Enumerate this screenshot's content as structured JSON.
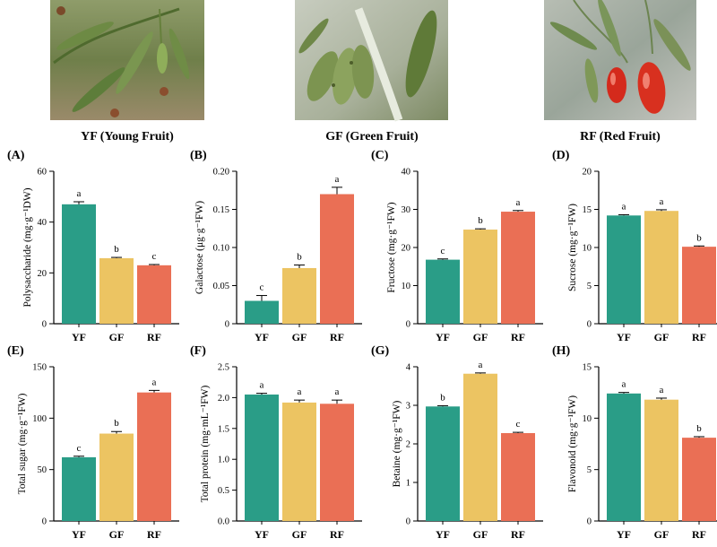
{
  "photos": [
    {
      "caption": "YF (Young Fruit)",
      "label": "YF (Young Fruit)"
    },
    {
      "caption": "GF (Green Fruit)",
      "label": "GF (Green Fruit)"
    },
    {
      "caption": "RF (Red Fruit)",
      "label": "RF (Red Fruit)"
    }
  ],
  "colors": {
    "YF": "#2a9d87",
    "GF": "#ecc462",
    "RF": "#ea6f55"
  },
  "chart_data": [
    {
      "panel": "(A)",
      "type": "bar",
      "ylabel": "Polysaccharide (mg·g⁻¹DW)",
      "categories": [
        "YF",
        "GF",
        "RF"
      ],
      "values": [
        47,
        25.8,
        23
      ],
      "errors": [
        1.0,
        0.3,
        0.3
      ],
      "letters": [
        "a",
        "b",
        "c"
      ],
      "ylim": [
        0,
        60
      ],
      "ticks": [
        "0",
        "20",
        "40",
        "60"
      ]
    },
    {
      "panel": "(B)",
      "type": "bar",
      "ylabel": "Galactose (μg·g⁻¹FW)",
      "categories": [
        "YF",
        "GF",
        "RF"
      ],
      "values": [
        0.03,
        0.073,
        0.17
      ],
      "errors": [
        0.007,
        0.004,
        0.009
      ],
      "letters": [
        "c",
        "b",
        "a"
      ],
      "ylim": [
        0,
        0.2
      ],
      "ticks": [
        "0",
        "0.05",
        "0.10",
        "0.15",
        "0.20"
      ]
    },
    {
      "panel": "(C)",
      "type": "bar",
      "ylabel": "Fructose (mg·g⁻¹FW)",
      "categories": [
        "YF",
        "GF",
        "RF"
      ],
      "values": [
        16.8,
        24.7,
        29.4
      ],
      "errors": [
        0.2,
        0.2,
        0.3
      ],
      "letters": [
        "c",
        "b",
        "a"
      ],
      "ylim": [
        0,
        40
      ],
      "ticks": [
        "0",
        "10",
        "20",
        "30",
        "40"
      ]
    },
    {
      "panel": "(D)",
      "type": "bar",
      "ylabel": "Sucrose (mg·g⁻¹FW)",
      "categories": [
        "YF",
        "GF",
        "RF"
      ],
      "values": [
        14.2,
        14.8,
        10.1
      ],
      "errors": [
        0.1,
        0.15,
        0.1
      ],
      "letters": [
        "a",
        "a",
        "b"
      ],
      "ylim": [
        0,
        20
      ],
      "ticks": [
        "0",
        "5",
        "10",
        "15",
        "20"
      ]
    },
    {
      "panel": "(E)",
      "type": "bar",
      "ylabel": "Total sugar (mg·g⁻¹FW)",
      "categories": [
        "YF",
        "GF",
        "RF"
      ],
      "values": [
        62,
        85,
        125
      ],
      "errors": [
        1.0,
        2.0,
        2.0
      ],
      "letters": [
        "c",
        "b",
        "a"
      ],
      "ylim": [
        0,
        150
      ],
      "ticks": [
        "0",
        "50",
        "100",
        "150"
      ]
    },
    {
      "panel": "(F)",
      "type": "bar",
      "ylabel": "Total protein (mg·mL⁻¹FW)",
      "categories": [
        "YF",
        "GF",
        "RF"
      ],
      "values": [
        2.05,
        1.92,
        1.9
      ],
      "errors": [
        0.02,
        0.04,
        0.06
      ],
      "letters": [
        "a",
        "a",
        "a"
      ],
      "ylim": [
        0,
        2.5
      ],
      "ticks": [
        "0.0",
        "0.5",
        "1.0",
        "1.5",
        "2.0",
        "2.5"
      ]
    },
    {
      "panel": "(G)",
      "type": "bar",
      "ylabel": "Betaine (mg·g⁻¹FW)",
      "categories": [
        "YF",
        "GF",
        "RF"
      ],
      "values": [
        2.97,
        3.82,
        2.28
      ],
      "errors": [
        0.02,
        0.02,
        0.02
      ],
      "letters": [
        "b",
        "a",
        "c"
      ],
      "ylim": [
        0,
        4
      ],
      "ticks": [
        "0",
        "1",
        "2",
        "3",
        "4"
      ]
    },
    {
      "panel": "(H)",
      "type": "bar",
      "ylabel": "Flavonoid (mg·g⁻¹FW)",
      "categories": [
        "YF",
        "GF",
        "RF"
      ],
      "values": [
        12.4,
        11.8,
        8.1
      ],
      "errors": [
        0.1,
        0.15,
        0.1
      ],
      "letters": [
        "a",
        "a",
        "b"
      ],
      "ylim": [
        0,
        15
      ],
      "ticks": [
        "0",
        "5",
        "10",
        "15"
      ]
    }
  ]
}
